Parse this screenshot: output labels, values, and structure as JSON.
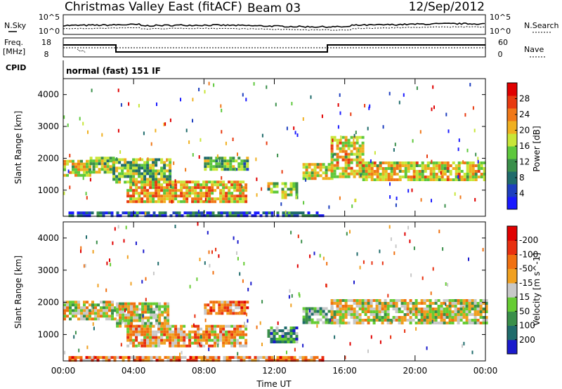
{
  "header": {
    "title": "Christmas Valley East (fitACF)",
    "beam": "Beam 03",
    "date": "12/Sep/2012"
  },
  "noise_panel": {
    "left_label": "N.Sky",
    "right_label": "N.Search",
    "left_ticks": [
      "10^5",
      "10^0"
    ],
    "right_ticks": [
      "10^5",
      "10^0"
    ]
  },
  "freq_panel": {
    "left_label_1": "Freq.",
    "left_label_2": "[MHz]",
    "left_ticks": [
      "18",
      "8"
    ],
    "right_label": "Nave",
    "right_ticks": [
      "60",
      "0"
    ]
  },
  "cpid": {
    "label": "CPID",
    "text": "normal (fast) 151 IF"
  },
  "chart_data": [
    {
      "type": "heatmap",
      "name": "power-panel",
      "ylabel": "Slant Range [km]",
      "yticks": [
        "1000",
        "2000",
        "3000",
        "4000"
      ],
      "ylim": [
        180,
        4500
      ],
      "xlim": [
        0,
        24
      ],
      "colorbar": {
        "label": "Power [dB]",
        "ticks": [
          "4",
          "8",
          "12",
          "16",
          "20",
          "24",
          "28"
        ],
        "colors": [
          "#1a1aff",
          "#1e3fbf",
          "#1f6b6b",
          "#3a8f4a",
          "#5ec83c",
          "#c8e638",
          "#f0b020",
          "#f07818",
          "#e83a10",
          "#e00000"
        ]
      },
      "bands": [
        {
          "t0": 0.0,
          "t1": 1.5,
          "r0": 1450,
          "r1": 1950,
          "level": 0.55
        },
        {
          "t0": 1.5,
          "t1": 2.8,
          "r0": 1550,
          "r1": 2050,
          "level": 0.5
        },
        {
          "t0": 2.8,
          "t1": 6.0,
          "r0": 1250,
          "r1": 2000,
          "level": 0.45
        },
        {
          "t0": 3.6,
          "t1": 10.4,
          "r0": 650,
          "r1": 1300,
          "level": 0.65
        },
        {
          "t0": 8.0,
          "t1": 10.5,
          "r0": 1650,
          "r1": 2050,
          "level": 0.4
        },
        {
          "t0": 11.6,
          "t1": 12.1,
          "r0": 950,
          "r1": 1250,
          "level": 0.5
        },
        {
          "t0": 12.4,
          "t1": 13.3,
          "r0": 750,
          "r1": 1250,
          "level": 0.45
        },
        {
          "t0": 13.6,
          "t1": 15.2,
          "r0": 1350,
          "r1": 1850,
          "level": 0.55
        },
        {
          "t0": 15.2,
          "t1": 17.0,
          "r0": 1400,
          "r1": 2700,
          "level": 0.6
        },
        {
          "t0": 17.0,
          "t1": 24.0,
          "r0": 1300,
          "r1": 1900,
          "level": 0.6
        },
        {
          "t0": 0.3,
          "t1": 14.8,
          "r0": 180,
          "r1": 330,
          "level": 0.2
        }
      ]
    },
    {
      "type": "heatmap",
      "name": "velocity-panel",
      "ylabel": "Slant Range [km]",
      "yticks": [
        "1000",
        "2000",
        "3000",
        "4000"
      ],
      "ylim": [
        180,
        4500
      ],
      "xlim": [
        0,
        24
      ],
      "xticks": [
        "00:00",
        "04:00",
        "08:00",
        "12:00",
        "16:00",
        "20:00",
        "00:00"
      ],
      "xlabel": "Time UT",
      "colorbar": {
        "label": "Velocity [m s^-1]",
        "ticks": [
          "200",
          "100",
          "50",
          "15",
          "-15",
          "-50",
          "-100",
          "-200"
        ],
        "colors": [
          "#1a1acc",
          "#1f6b6b",
          "#3a8f4a",
          "#66cc33",
          "#c8c8c8",
          "#f0a020",
          "#f07010",
          "#e83010",
          "#e00000"
        ]
      },
      "bands": [
        {
          "t0": 0.0,
          "t1": 3.0,
          "r0": 1450,
          "r1": 2050,
          "level": 0.5
        },
        {
          "t0": 3.0,
          "t1": 6.0,
          "r0": 1250,
          "r1": 2000,
          "level": 0.5
        },
        {
          "t0": 3.6,
          "t1": 10.4,
          "r0": 650,
          "r1": 1300,
          "level": 0.62
        },
        {
          "t0": 8.0,
          "t1": 10.5,
          "r0": 1650,
          "r1": 2050,
          "level": 0.7
        },
        {
          "t0": 11.6,
          "t1": 13.3,
          "r0": 800,
          "r1": 1250,
          "level": 0.3
        },
        {
          "t0": 13.6,
          "t1": 15.2,
          "r0": 1350,
          "r1": 1850,
          "level": 0.35
        },
        {
          "t0": 15.2,
          "t1": 24.0,
          "r0": 1350,
          "r1": 2100,
          "level": 0.5
        },
        {
          "t0": 0.3,
          "t1": 14.8,
          "r0": 180,
          "r1": 330,
          "level": 0.7
        }
      ]
    }
  ]
}
